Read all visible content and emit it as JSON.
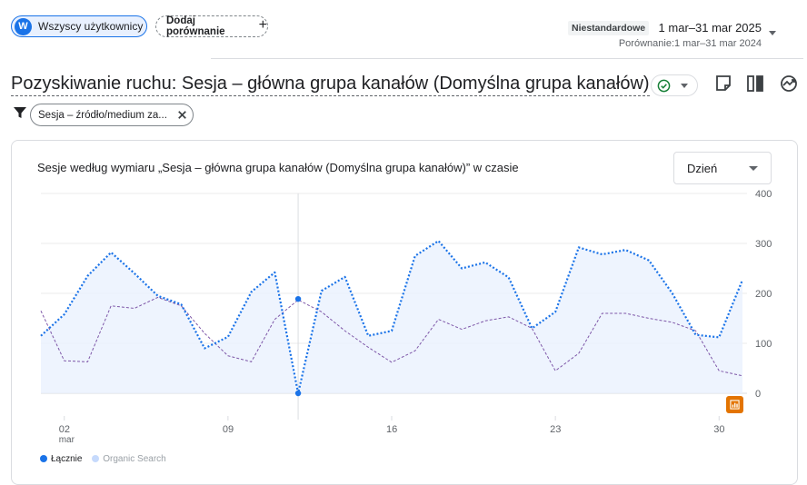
{
  "top": {
    "all_users_avatar": "W",
    "all_users_label": "Wszyscy użytkownicy",
    "add_comparison_label": "Dodaj porównanie",
    "date_badge": "Niestandardowe",
    "date_range": "1 mar–31 mar 2025",
    "compare_label": "Porównanie:1 mar–31 mar 2024"
  },
  "report": {
    "title": "Pozyskiwanie ruchu: Sesja – główna grupa kanałów (Domyślna grupa kanałów)",
    "status_icon": "check-circle-icon",
    "toolbar_icons": [
      "note-icon",
      "compare-columns-icon",
      "insights-icon"
    ]
  },
  "filter": {
    "icon": "filter-icon",
    "chip_label": "Sesja – źródło/medium za..."
  },
  "card": {
    "title": "Sesje według wymiaru „Sesja – główna grupa kanałów (Domyślna grupa kanałów)” w czasie",
    "granularity": "Dzień",
    "legend": [
      {
        "label": "Łącznie",
        "color": "#1a73e8"
      },
      {
        "label": "Organic Search",
        "color": "#c6dafc"
      }
    ]
  },
  "chart_data": {
    "type": "line",
    "x": [
      1,
      2,
      3,
      4,
      5,
      6,
      7,
      8,
      9,
      10,
      11,
      12,
      13,
      14,
      15,
      16,
      17,
      18,
      19,
      20,
      21,
      22,
      23,
      24,
      25,
      26,
      27,
      28,
      29,
      30,
      31
    ],
    "x_ticks": [
      {
        "day": 2,
        "label": "02",
        "sub": "mar"
      },
      {
        "day": 9,
        "label": "09",
        "sub": ""
      },
      {
        "day": 16,
        "label": "16",
        "sub": ""
      },
      {
        "day": 23,
        "label": "23",
        "sub": ""
      },
      {
        "day": 30,
        "label": "30",
        "sub": ""
      }
    ],
    "y_ticks": [
      "400",
      "300",
      "200",
      "100",
      "0"
    ],
    "ylim": [
      0,
      400
    ],
    "hover_day": 12,
    "series": [
      {
        "name": "Łącznie",
        "color": "#1a73e8",
        "style": "dotted",
        "fill": true,
        "values": [
          115,
          158,
          235,
          282,
          240,
          195,
          178,
          90,
          113,
          203,
          242,
          0,
          205,
          233,
          115,
          125,
          275,
          305,
          250,
          262,
          232,
          130,
          163,
          292,
          278,
          287,
          266,
          200,
          117,
          112,
          227
        ]
      },
      {
        "name": "",
        "color": "#7e57a8",
        "style": "dashed",
        "fill": false,
        "values": [
          165,
          65,
          63,
          175,
          170,
          192,
          175,
          120,
          75,
          63,
          148,
          187,
          163,
          125,
          92,
          62,
          85,
          148,
          128,
          145,
          153,
          130,
          45,
          80,
          160,
          160,
          150,
          142,
          125,
          45,
          35
        ]
      }
    ]
  }
}
